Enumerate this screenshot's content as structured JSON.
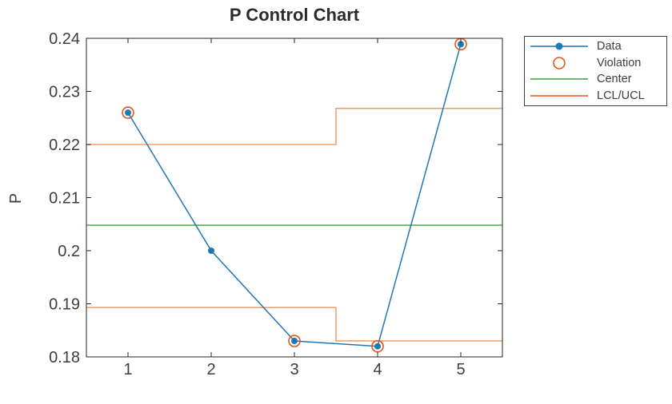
{
  "figure": {
    "title": "P Control Chart",
    "ylabel": "P"
  },
  "legend": {
    "position": "outside-top-right",
    "items": [
      {
        "label": "Data",
        "kind": "line_markers",
        "color": "#1f77b4"
      },
      {
        "label": "Violation",
        "kind": "open_markers",
        "color": "#e2571d"
      },
      {
        "label": "Center",
        "kind": "line",
        "color": "#3aa13a"
      },
      {
        "label": "LCL/UCL",
        "kind": "line",
        "color": "#e0561c"
      }
    ]
  },
  "colors": {
    "data_blue": "#1f77b4",
    "violation_orange": "#e2571d",
    "limits_orange": "#f09b6a",
    "center_green": "#3aa13a",
    "axis": "#262626",
    "tick_text": "#3d3d3d"
  },
  "chart_data": {
    "type": "line",
    "title": "P Control Chart",
    "xlabel": "",
    "ylabel": "P",
    "xlim": [
      0.5,
      5.5
    ],
    "ylim": [
      0.18,
      0.24
    ],
    "grid": false,
    "box_mirror_ticks": true,
    "legend_position": "outside-top-right",
    "xticks": {
      "values": [
        1,
        2,
        3,
        4,
        5
      ],
      "labels": [
        "1",
        "2",
        "3",
        "4",
        "5"
      ]
    },
    "yticks": {
      "values": [
        0.18,
        0.19,
        0.2,
        0.21,
        0.22,
        0.23,
        0.24
      ],
      "labels": [
        "0.18",
        "0.19",
        "0.2",
        "0.21",
        "0.22",
        "0.23",
        "0.24"
      ]
    },
    "series": [
      {
        "name": "Data",
        "kind": "line_markers",
        "color": "#1f77b4",
        "x": [
          1,
          2,
          3,
          4,
          5
        ],
        "y": [
          0.226,
          0.2,
          0.183,
          0.182,
          0.2389
        ]
      },
      {
        "name": "Violation",
        "kind": "open_markers",
        "color": "#e2571d",
        "x": [
          1,
          3,
          4,
          5
        ],
        "y": [
          0.226,
          0.183,
          0.182,
          0.2389
        ]
      },
      {
        "name": "Center",
        "kind": "line",
        "color": "#3aa13a",
        "x": [
          0.5,
          5.5
        ],
        "y": [
          0.2048,
          0.2048
        ]
      },
      {
        "name": "LCL/UCL",
        "kind": "steps",
        "color": "#f09b6a",
        "segments": [
          [
            [
              0.5,
              0.22
            ],
            [
              3.5,
              0.22
            ],
            [
              3.5,
              0.2268
            ],
            [
              5.5,
              0.2268
            ]
          ],
          [
            [
              0.5,
              0.1893
            ],
            [
              3.5,
              0.1893
            ],
            [
              3.5,
              0.183
            ],
            [
              5.5,
              0.183
            ]
          ]
        ]
      }
    ]
  }
}
